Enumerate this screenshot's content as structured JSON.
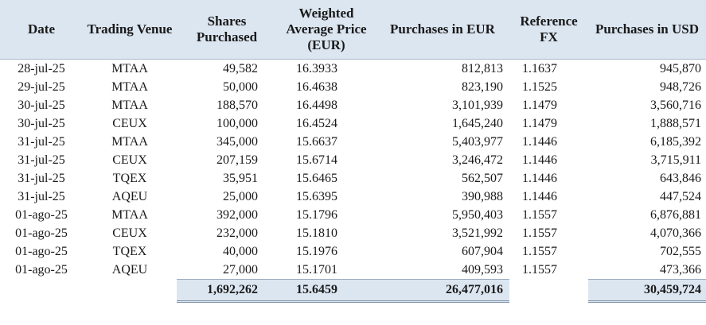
{
  "headers": {
    "date": "Date",
    "venue": "Trading Venue",
    "shares": "Shares Purchased",
    "wap": "Weighted Average Price (EUR)",
    "eur": "Purchases in EUR",
    "fx": "Reference FX",
    "usd": "Purchases in USD"
  },
  "rows": [
    {
      "date": "28-jul-25",
      "venue": "MTAA",
      "shares": "49,582",
      "wap": "16.3933",
      "eur": "812,813",
      "fx": "1.1637",
      "usd": "945,870"
    },
    {
      "date": "29-jul-25",
      "venue": "MTAA",
      "shares": "50,000",
      "wap": "16.4638",
      "eur": "823,190",
      "fx": "1.1525",
      "usd": "948,726"
    },
    {
      "date": "30-jul-25",
      "venue": "MTAA",
      "shares": "188,570",
      "wap": "16.4498",
      "eur": "3,101,939",
      "fx": "1.1479",
      "usd": "3,560,716"
    },
    {
      "date": "30-jul-25",
      "venue": "CEUX",
      "shares": "100,000",
      "wap": "16.4524",
      "eur": "1,645,240",
      "fx": "1.1479",
      "usd": "1,888,571"
    },
    {
      "date": "31-jul-25",
      "venue": "MTAA",
      "shares": "345,000",
      "wap": "15.6637",
      "eur": "5,403,977",
      "fx": "1.1446",
      "usd": "6,185,392"
    },
    {
      "date": "31-jul-25",
      "venue": "CEUX",
      "shares": "207,159",
      "wap": "15.6714",
      "eur": "3,246,472",
      "fx": "1.1446",
      "usd": "3,715,911"
    },
    {
      "date": "31-jul-25",
      "venue": "TQEX",
      "shares": "35,951",
      "wap": "15.6465",
      "eur": "562,507",
      "fx": "1.1446",
      "usd": "643,846"
    },
    {
      "date": "31-jul-25",
      "venue": "AQEU",
      "shares": "25,000",
      "wap": "15.6395",
      "eur": "390,988",
      "fx": "1.1446",
      "usd": "447,524"
    },
    {
      "date": "01-ago-25",
      "venue": "MTAA",
      "shares": "392,000",
      "wap": "15.1796",
      "eur": "5,950,403",
      "fx": "1.1557",
      "usd": "6,876,881"
    },
    {
      "date": "01-ago-25",
      "venue": "CEUX",
      "shares": "232,000",
      "wap": "15.1810",
      "eur": "3,521,992",
      "fx": "1.1557",
      "usd": "4,070,366"
    },
    {
      "date": "01-ago-25",
      "venue": "TQEX",
      "shares": "40,000",
      "wap": "15.1976",
      "eur": "607,904",
      "fx": "1.1557",
      "usd": "702,555"
    },
    {
      "date": "01-ago-25",
      "venue": "AQEU",
      "shares": "27,000",
      "wap": "15.1701",
      "eur": "409,593",
      "fx": "1.1557",
      "usd": "473,366"
    }
  ],
  "totals": {
    "shares": "1,692,262",
    "wap": "15.6459",
    "eur": "26,477,016",
    "usd": "30,459,724"
  },
  "colors": {
    "header_bg": "#dce6f1",
    "total_bg": "#dce6f1"
  }
}
